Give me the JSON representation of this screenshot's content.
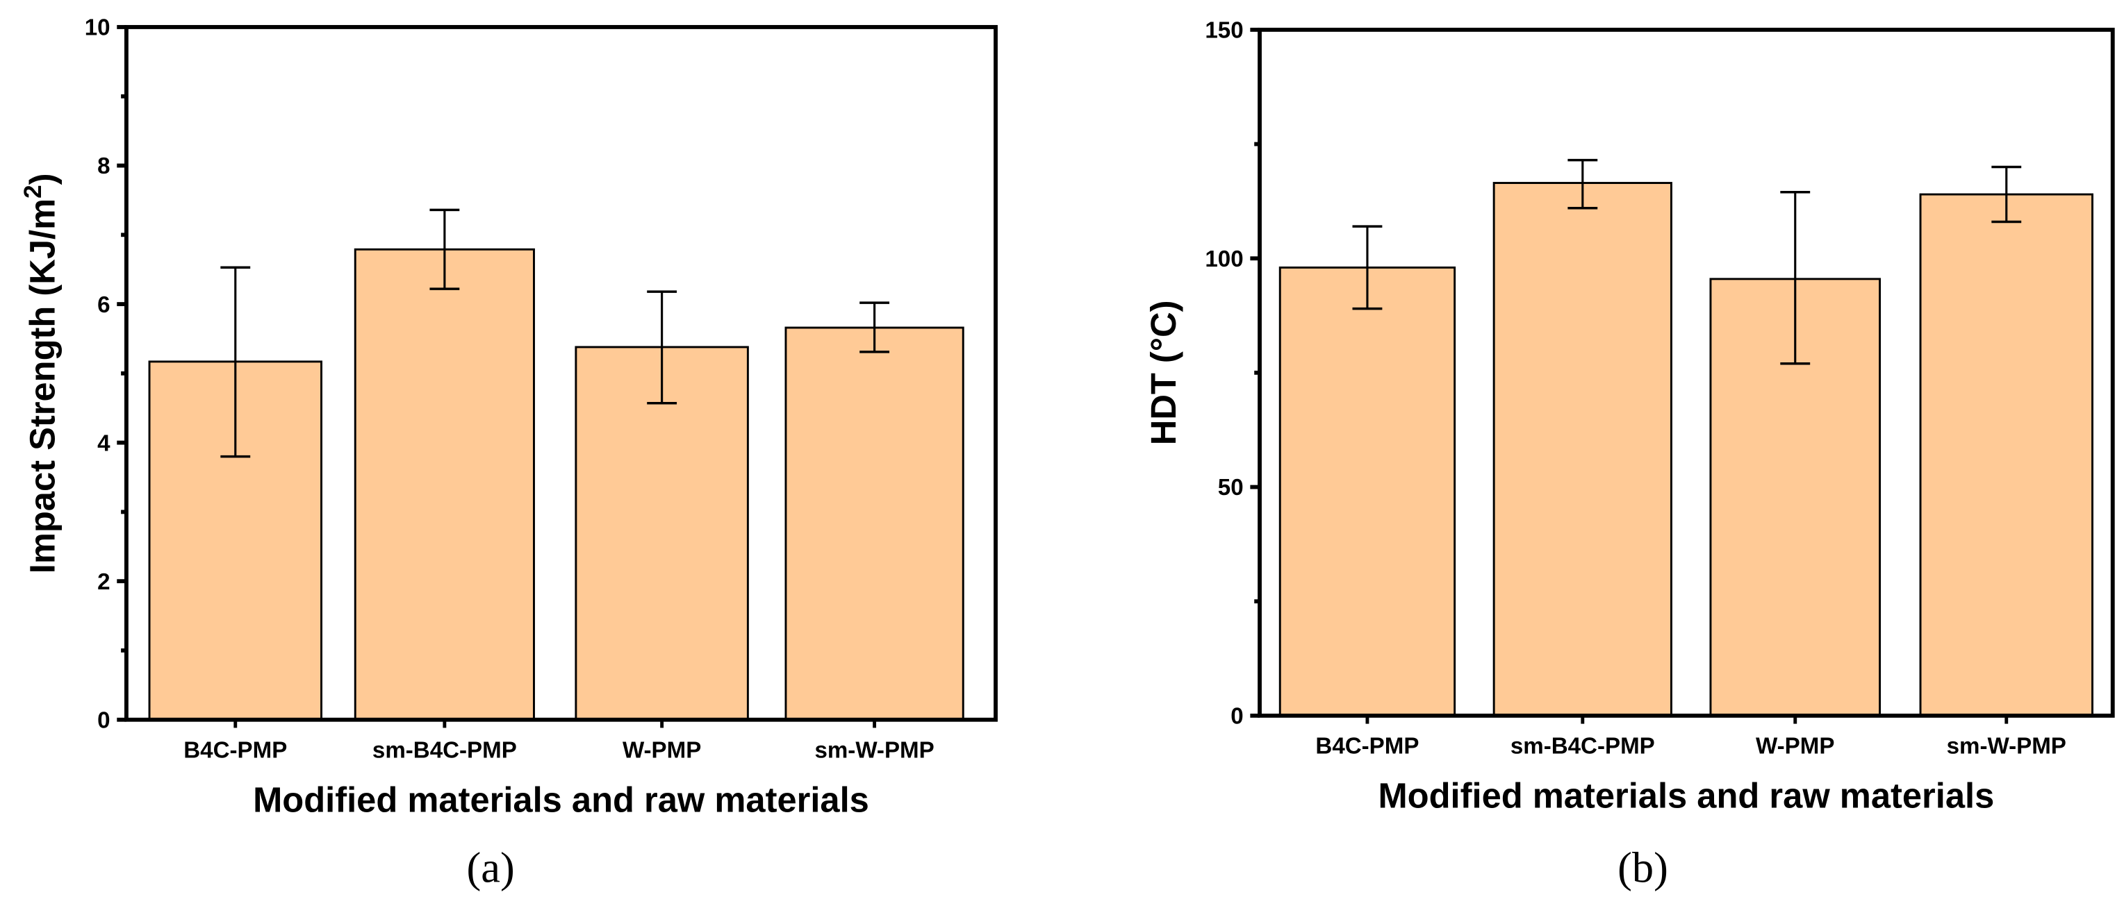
{
  "chart_data": [
    {
      "type": "bar",
      "panel": "(a)",
      "panel_letter": "a",
      "categories": [
        "B4C-PMP",
        "sm-B4C-PMP",
        "W-PMP",
        "sm-W-PMP"
      ],
      "values": [
        5.17,
        6.79,
        5.38,
        5.66
      ],
      "error_low": [
        3.8,
        6.22,
        4.57,
        5.31
      ],
      "error_high": [
        6.53,
        7.36,
        6.18,
        6.02
      ],
      "xlabel": "Modified materials and raw materials",
      "ylabel": "Impact Strength  (KJ/m",
      "ylabel_sup": "2",
      "ylabel_end": ")",
      "ylim": [
        0,
        10
      ],
      "yticks": [
        0,
        2,
        4,
        6,
        8,
        10
      ],
      "bar_color": "#FFCA96"
    },
    {
      "type": "bar",
      "panel": "(b)",
      "panel_letter": "b",
      "categories": [
        "B4C-PMP",
        "sm-B4C-PMP",
        "W-PMP",
        "sm-W-PMP"
      ],
      "values": [
        98,
        116.5,
        95.5,
        114
      ],
      "error_low": [
        89,
        111,
        77,
        108
      ],
      "error_high": [
        107,
        121.5,
        114.5,
        120
      ],
      "xlabel": "Modified materials and raw materials",
      "ylabel": "HDT  (°C)",
      "ylim": [
        0,
        150
      ],
      "yticks": [
        0,
        50,
        100,
        150
      ],
      "bar_color": "#FFCA96"
    }
  ]
}
